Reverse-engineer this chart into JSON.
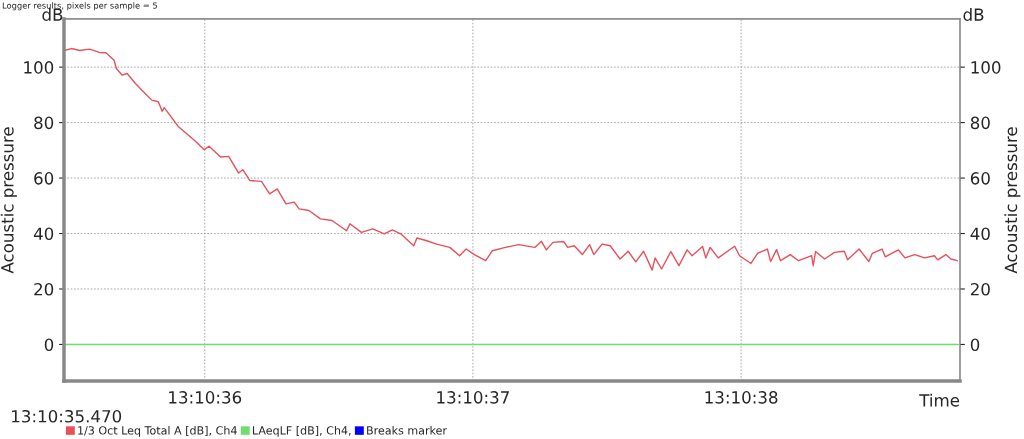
{
  "chart_data": {
    "type": "line",
    "title": "Logger results, pixels per sample = 5",
    "xlabel": "Time",
    "ylabel": "Acoustic pressure",
    "y2label": "Acoustic pressure",
    "annotations": [
      "13:10:35.470",
      "dB",
      "dB"
    ],
    "xlim": [
      13.1765209,
      13.1774489
    ],
    "xticks": [
      {
        "value": 13.1766667,
        "label": "13:10:36"
      },
      {
        "value": 13.1769444,
        "label": "13:10:37"
      },
      {
        "value": 13.1772222,
        "label": "13:10:38"
      }
    ],
    "ylim": [
      -13.2,
      117.4
    ],
    "yticks": [
      0,
      20,
      40,
      60,
      80,
      100
    ],
    "y2lim": [
      -13.2,
      117.4
    ],
    "y2ticks": [
      0,
      20,
      40,
      60,
      80,
      100
    ],
    "grid": true,
    "legend": "bottom left",
    "marker": "none",
    "line_style": "solid",
    "series": [
      {
        "name": "1/3 Oct Leq Total A [dB], Ch4",
        "color": "#e8505a",
        "x": [
          13.1765219,
          13.1765287,
          13.1765372,
          13.1765473,
          13.1765575,
          13.1765643,
          13.1765728,
          13.1765751,
          13.1765812,
          13.1765863,
          13.1765949,
          13.1766016,
          13.1766118,
          13.1766186,
          13.1766226,
          13.1766247,
          13.1766321,
          13.1766389,
          13.1766559,
          13.1766661,
          13.1766712,
          13.176683,
          13.1766915,
          13.1767017,
          13.1767061,
          13.1767135,
          13.1767254,
          13.1767339,
          13.1767417,
          13.1767508,
          13.1767593,
          13.1767644,
          13.1767746,
          13.1767865,
          13.1767984,
          13.1768136,
          13.176817,
          13.1768289,
          13.1768407,
          13.1768526,
          13.176861,
          13.1768696,
          13.1768831,
          13.1768865,
          13.1768967,
          13.1769068,
          13.1769205,
          13.1769306,
          13.1769374,
          13.1769459,
          13.1769577,
          13.1769645,
          13.1769781,
          13.1769917,
          13.1770086,
          13.1770154,
          13.1770205,
          13.1770273,
          13.1770385,
          13.1770426,
          13.1770493,
          13.1770578,
          13.1770653,
          13.1770696,
          13.1770782,
          13.1770866,
          13.1770968,
          13.1771052,
          13.1771131,
          13.1771212,
          13.1771301,
          13.1771331,
          13.1771398,
          13.1771494,
          13.1771578,
          13.1771663,
          13.1771714,
          13.1771823,
          13.1771856,
          13.1771901,
          13.1771985,
          13.1772155,
          13.1772206,
          13.1772324,
          13.1772392,
          13.1772494,
          13.1772528,
          13.1772589,
          13.177263,
          13.1772731,
          13.1772817,
          13.1772952,
          13.1772969,
          13.1772993,
          13.1773087,
          13.1773189,
          13.1773291,
          13.1773325,
          13.1773444,
          13.1773545,
          13.177358,
          13.1773682,
          13.1773715,
          13.1773851,
          13.1773919,
          13.1774021,
          13.1774122,
          13.1774224,
          13.1774258,
          13.1774343,
          13.1774394,
          13.1774461
        ],
        "values": [
          106.1,
          106.7,
          106,
          106.5,
          105.3,
          105.2,
          102.5,
          99.5,
          97.1,
          97.7,
          94.1,
          91.7,
          88.1,
          87.5,
          84.1,
          85.4,
          82,
          78.7,
          73.6,
          70.2,
          71.5,
          67.6,
          67.8,
          61.8,
          63,
          59.1,
          58.8,
          54.3,
          56.1,
          50.7,
          51.3,
          48.9,
          48.3,
          45.3,
          44.7,
          41,
          43.5,
          40.4,
          41.7,
          39.9,
          41.3,
          39.9,
          35.6,
          38.4,
          37.4,
          36.2,
          35,
          32,
          34.4,
          32.4,
          30.2,
          33.8,
          35,
          36,
          35,
          37.2,
          34.1,
          36.8,
          37.1,
          35,
          35.6,
          32.4,
          36,
          32.4,
          36.2,
          35.6,
          30.8,
          33.6,
          29.8,
          33.6,
          26.8,
          31.2,
          27.2,
          33.5,
          28.4,
          34.1,
          32,
          35.3,
          31.2,
          35,
          31.2,
          35.4,
          32,
          29.2,
          32.8,
          34.4,
          29.9,
          34.2,
          30.2,
          32.4,
          30.2,
          32,
          28.4,
          33.5,
          30.8,
          33.2,
          33.6,
          30.5,
          34.4,
          29.9,
          32.8,
          34.4,
          31.6,
          34.1,
          31.2,
          32.4,
          31.2,
          32,
          30.5,
          32.4,
          30.8,
          30.2
        ]
      },
      {
        "name": "LAeqLF [dB], Ch4,",
        "color": "#70dd70",
        "x": [
          13.1765219,
          13.1774461
        ],
        "values": [
          0,
          0
        ]
      },
      {
        "name": "Breaks marker",
        "color": "#0000ff"
      }
    ]
  }
}
